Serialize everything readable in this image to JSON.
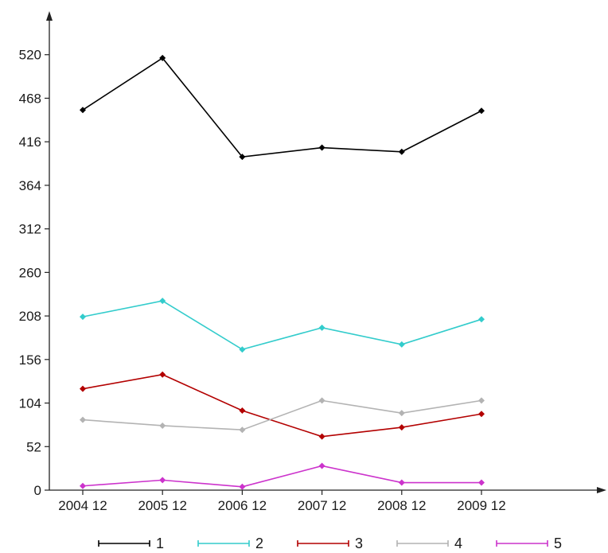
{
  "chart_data": {
    "type": "line",
    "categories": [
      "2004 12",
      "2005 12",
      "2006 12",
      "2007 12",
      "2008 12",
      "2009 12"
    ],
    "ylim": [
      0,
      572
    ],
    "yticks": [
      0,
      52,
      104,
      156,
      208,
      260,
      312,
      364,
      416,
      468,
      520
    ],
    "grid": false,
    "legend": "bottom",
    "series": [
      {
        "name": "1",
        "color": "#000000",
        "marker": "diamond",
        "values": [
          454,
          516,
          398,
          409,
          404,
          453
        ]
      },
      {
        "name": "2",
        "color": "#33cccc",
        "marker": "diamond",
        "values": [
          207,
          226,
          168,
          194,
          174,
          204
        ]
      },
      {
        "name": "3",
        "color": "#b30000",
        "marker": "diamond",
        "values": [
          121,
          138,
          95,
          64,
          75,
          91
        ]
      },
      {
        "name": "4",
        "color": "#b3b3b3",
        "marker": "diamond",
        "values": [
          84,
          77,
          72,
          107,
          92,
          107
        ]
      },
      {
        "name": "5",
        "color": "#cc33cc",
        "marker": "diamond",
        "values": [
          5,
          12,
          4,
          29,
          9,
          9
        ]
      }
    ]
  }
}
